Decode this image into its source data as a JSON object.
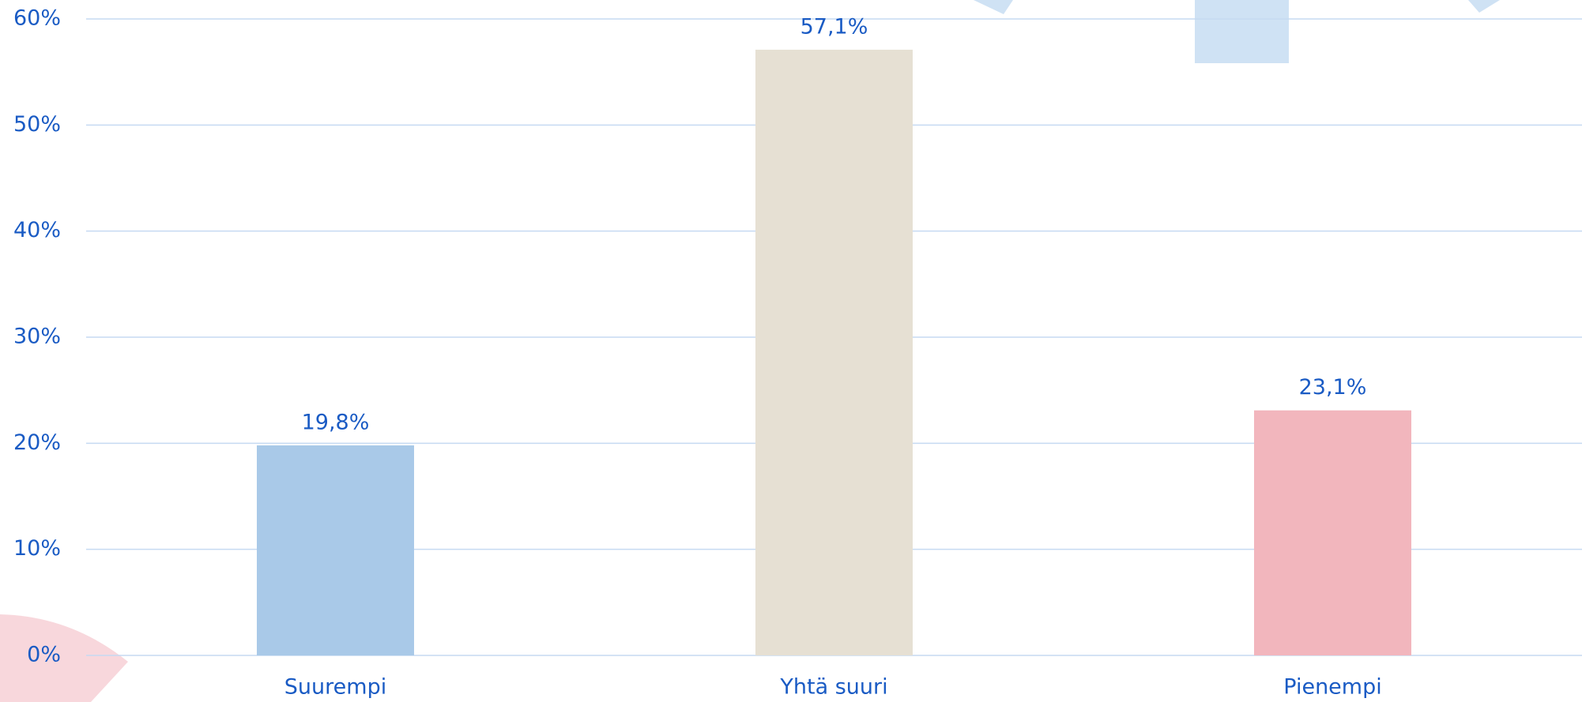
{
  "chart_data": {
    "type": "bar",
    "categories": [
      "Suurempi",
      "Yhtä suuri",
      "Pienempi"
    ],
    "values": [
      19.8,
      57.1,
      23.1
    ],
    "value_labels": [
      "19,8%",
      "57,1%",
      "23,1%"
    ],
    "colors": [
      "#a9c9e8",
      "#e6e0d3",
      "#f2b6bd"
    ],
    "ylim": [
      0,
      60
    ],
    "yticks": [
      {
        "value": 0,
        "label": "0%"
      },
      {
        "value": 10,
        "label": "10%"
      },
      {
        "value": 20,
        "label": "20%"
      },
      {
        "value": 30,
        "label": "30%"
      },
      {
        "value": 40,
        "label": "40%"
      },
      {
        "value": 50,
        "label": "50%"
      },
      {
        "value": 60,
        "label": "60%"
      }
    ],
    "grid": true
  }
}
